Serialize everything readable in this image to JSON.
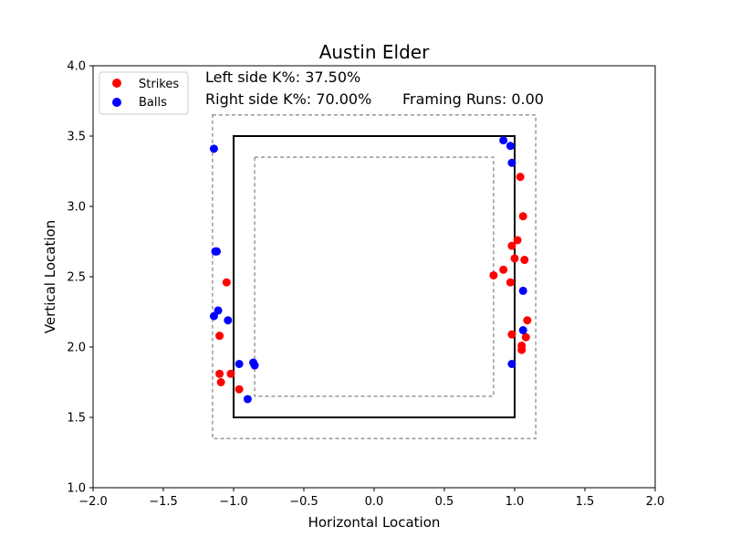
{
  "chart_data": {
    "type": "scatter",
    "title": "Austin Elder",
    "xlabel": "Horizontal Location",
    "ylabel": "Vertical Location",
    "xlim": [
      -2.0,
      2.0
    ],
    "ylim": [
      1.0,
      4.0
    ],
    "x_ticks": [
      "−2.0",
      "−1.5",
      "−1.0",
      "−0.5",
      "0.0",
      "0.5",
      "1.0",
      "1.5",
      "2.0"
    ],
    "y_ticks": [
      "1.0",
      "1.5",
      "2.0",
      "2.5",
      "3.0",
      "3.5",
      "4.0"
    ],
    "x_tick_values": [
      -2.0,
      -1.5,
      -1.0,
      -0.5,
      0.0,
      0.5,
      1.0,
      1.5,
      2.0
    ],
    "y_tick_values": [
      1.0,
      1.5,
      2.0,
      2.5,
      3.0,
      3.5,
      4.0
    ],
    "grid": false,
    "legend_placement": "top-left",
    "annotations": {
      "left_k": "Left side K%: 37.50%",
      "right_k": "Right side K%: 70.00%",
      "framing": "Framing Runs: 0.00"
    },
    "zones": {
      "strike_zone": {
        "x": [
          -1.0,
          1.0
        ],
        "y": [
          1.5,
          3.5
        ],
        "style": "solid",
        "color": "#000000"
      },
      "outer_zone": {
        "x": [
          -1.15,
          1.15
        ],
        "y": [
          1.35,
          3.65
        ],
        "style": "dashed",
        "color": "#808080"
      },
      "inner_zone": {
        "x": [
          -0.85,
          0.85
        ],
        "y": [
          1.65,
          3.35
        ],
        "style": "dashed",
        "color": "#808080"
      }
    },
    "series": [
      {
        "name": "Strikes",
        "color": "#ff0000",
        "points": [
          [
            -1.05,
            2.46
          ],
          [
            -1.1,
            2.08
          ],
          [
            -1.1,
            1.81
          ],
          [
            -1.09,
            1.75
          ],
          [
            -1.02,
            1.81
          ],
          [
            -0.96,
            1.7
          ],
          [
            1.04,
            3.21
          ],
          [
            1.06,
            2.93
          ],
          [
            1.02,
            2.76
          ],
          [
            0.98,
            2.72
          ],
          [
            0.92,
            2.55
          ],
          [
            0.85,
            2.51
          ],
          [
            1.0,
            2.63
          ],
          [
            1.07,
            2.62
          ],
          [
            0.97,
            2.46
          ],
          [
            1.09,
            2.19
          ],
          [
            0.98,
            2.09
          ],
          [
            1.08,
            2.07
          ],
          [
            1.05,
            2.01
          ],
          [
            1.05,
            1.98
          ]
        ]
      },
      {
        "name": "Balls",
        "color": "#0000ff",
        "points": [
          [
            -1.14,
            3.41
          ],
          [
            -1.12,
            2.68
          ],
          [
            -1.13,
            2.68
          ],
          [
            -1.11,
            2.26
          ],
          [
            -1.14,
            2.22
          ],
          [
            -1.04,
            2.19
          ],
          [
            -0.96,
            1.88
          ],
          [
            -0.86,
            1.89
          ],
          [
            -0.85,
            1.87
          ],
          [
            -0.9,
            1.63
          ],
          [
            0.92,
            3.47
          ],
          [
            0.97,
            3.43
          ],
          [
            0.98,
            3.31
          ],
          [
            1.06,
            2.4
          ],
          [
            1.06,
            2.12
          ],
          [
            0.98,
            1.88
          ]
        ]
      }
    ]
  }
}
